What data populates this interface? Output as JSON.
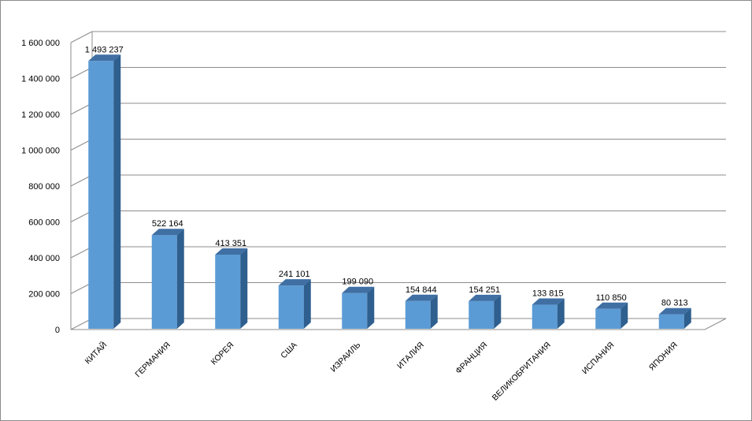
{
  "chart_data": {
    "type": "bar",
    "categories": [
      "КИТАЙ",
      "ГЕРМАНИЯ",
      "КОРЕЯ",
      "США",
      "ИЗРАИЛЬ",
      "ИТАЛИЯ",
      "ФРАНЦИЯ",
      "ВЕЛИКОБРИТАНИЯ",
      "ИСПАНИЯ",
      "ЯПОНИЯ"
    ],
    "values": [
      1493237,
      522164,
      413351,
      241101,
      199090,
      154844,
      154251,
      133815,
      110850,
      80313
    ],
    "value_labels": [
      "1 493 237",
      "522 164",
      "413 351",
      "241 101",
      "199 090",
      "154 844",
      "154 251",
      "133 815",
      "110 850",
      "80 313"
    ],
    "ylim": [
      0,
      1600000
    ],
    "yticks": [
      0,
      200000,
      400000,
      600000,
      800000,
      1000000,
      1200000,
      1400000,
      1600000
    ],
    "ytick_labels": [
      "0",
      "200 000",
      "400 000",
      "600 000",
      "800 000",
      "1 000 000",
      "1 200 000",
      "1 400 000",
      "1 600 000"
    ],
    "grid": true,
    "legend": "none",
    "style": "3d-column",
    "colors": {
      "bar_front": "#5b9bd5",
      "bar_side": "#2e5f8e",
      "bar_top": "#3f6fa3",
      "grid": "#8c8c8c"
    }
  }
}
